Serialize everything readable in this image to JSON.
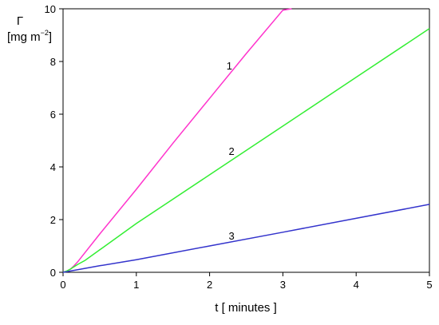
{
  "chart_data": {
    "type": "line",
    "title": "",
    "xlabel": "t [ minutes ]",
    "ylabel": {
      "symbol": "Γ",
      "unit_prefix": "[mg m",
      "unit_exponent": "−2",
      "unit_suffix": "]"
    },
    "xlim": [
      0,
      5
    ],
    "ylim": [
      0,
      10
    ],
    "xticks": [
      0,
      1,
      2,
      3,
      4,
      5
    ],
    "yticks": [
      0,
      2,
      4,
      6,
      8,
      10
    ],
    "grid": false,
    "legend": "none",
    "series": [
      {
        "label": "1",
        "color": "#ff33cc",
        "label_at": [
          2.27,
          7.7
        ],
        "x": [
          0,
          0.05,
          0.1,
          0.15,
          0.2,
          0.3,
          0.5,
          1.0,
          1.5,
          2.0,
          2.5,
          3.0,
          3.12
        ],
        "y": [
          0,
          0.04,
          0.12,
          0.25,
          0.4,
          0.75,
          1.45,
          3.15,
          4.9,
          6.6,
          8.3,
          9.95,
          10.0
        ]
      },
      {
        "label": "2",
        "color": "#33ee33",
        "label_at": [
          2.3,
          4.45
        ],
        "x": [
          0,
          0.05,
          0.1,
          0.2,
          0.3,
          0.5,
          1.0,
          2.0,
          3.0,
          4.0,
          5.0
        ],
        "y": [
          0,
          0.05,
          0.12,
          0.3,
          0.45,
          0.85,
          1.85,
          3.7,
          5.55,
          7.4,
          9.25
        ]
      },
      {
        "label": "3",
        "color": "#3333cc",
        "label_at": [
          2.3,
          1.25
        ],
        "x": [
          0,
          0.05,
          0.1,
          0.2,
          0.5,
          1.0,
          2.0,
          3.0,
          4.0,
          5.0
        ],
        "y": [
          0,
          0.02,
          0.05,
          0.1,
          0.25,
          0.48,
          1.0,
          1.52,
          2.05,
          2.58
        ]
      }
    ]
  }
}
